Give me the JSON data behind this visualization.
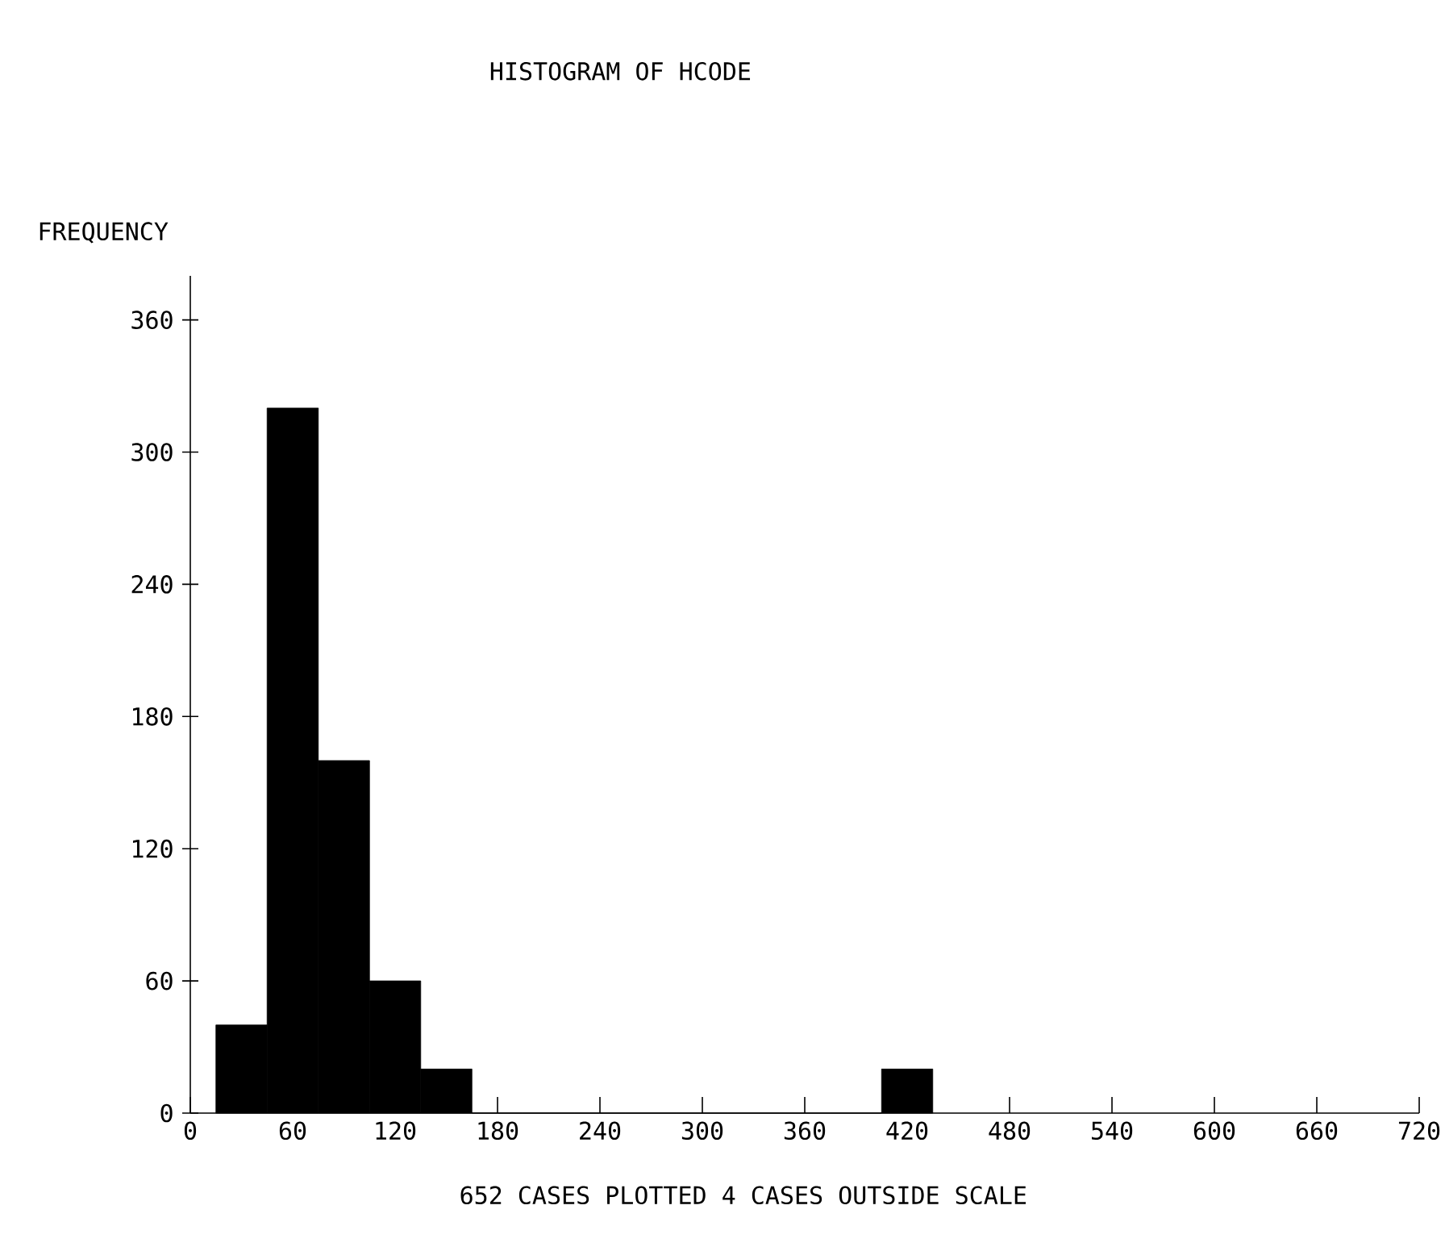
{
  "chart_data": {
    "type": "histogram",
    "title": "HISTOGRAM OF HCODE",
    "ylabel": "FREQUENCY",
    "bins": [
      15,
      45,
      75,
      105,
      135,
      165,
      195,
      225,
      255,
      285,
      315,
      345,
      375,
      405,
      435
    ],
    "values": [
      40,
      320,
      160,
      60,
      20,
      0,
      0,
      0,
      0,
      0,
      0,
      0,
      0,
      20
    ],
    "color": "#000000",
    "xlim": [
      0,
      720
    ],
    "xticks": [
      0,
      60,
      120,
      180,
      240,
      300,
      360,
      420,
      480,
      540,
      600,
      660,
      720
    ],
    "ylim": [
      0,
      380
    ],
    "yticks": [
      0,
      60,
      120,
      180,
      240,
      300,
      360
    ],
    "grid": false,
    "annotations": [
      "652 CASES PLOTTED    4 CASES OUTSIDE SCALE"
    ]
  }
}
